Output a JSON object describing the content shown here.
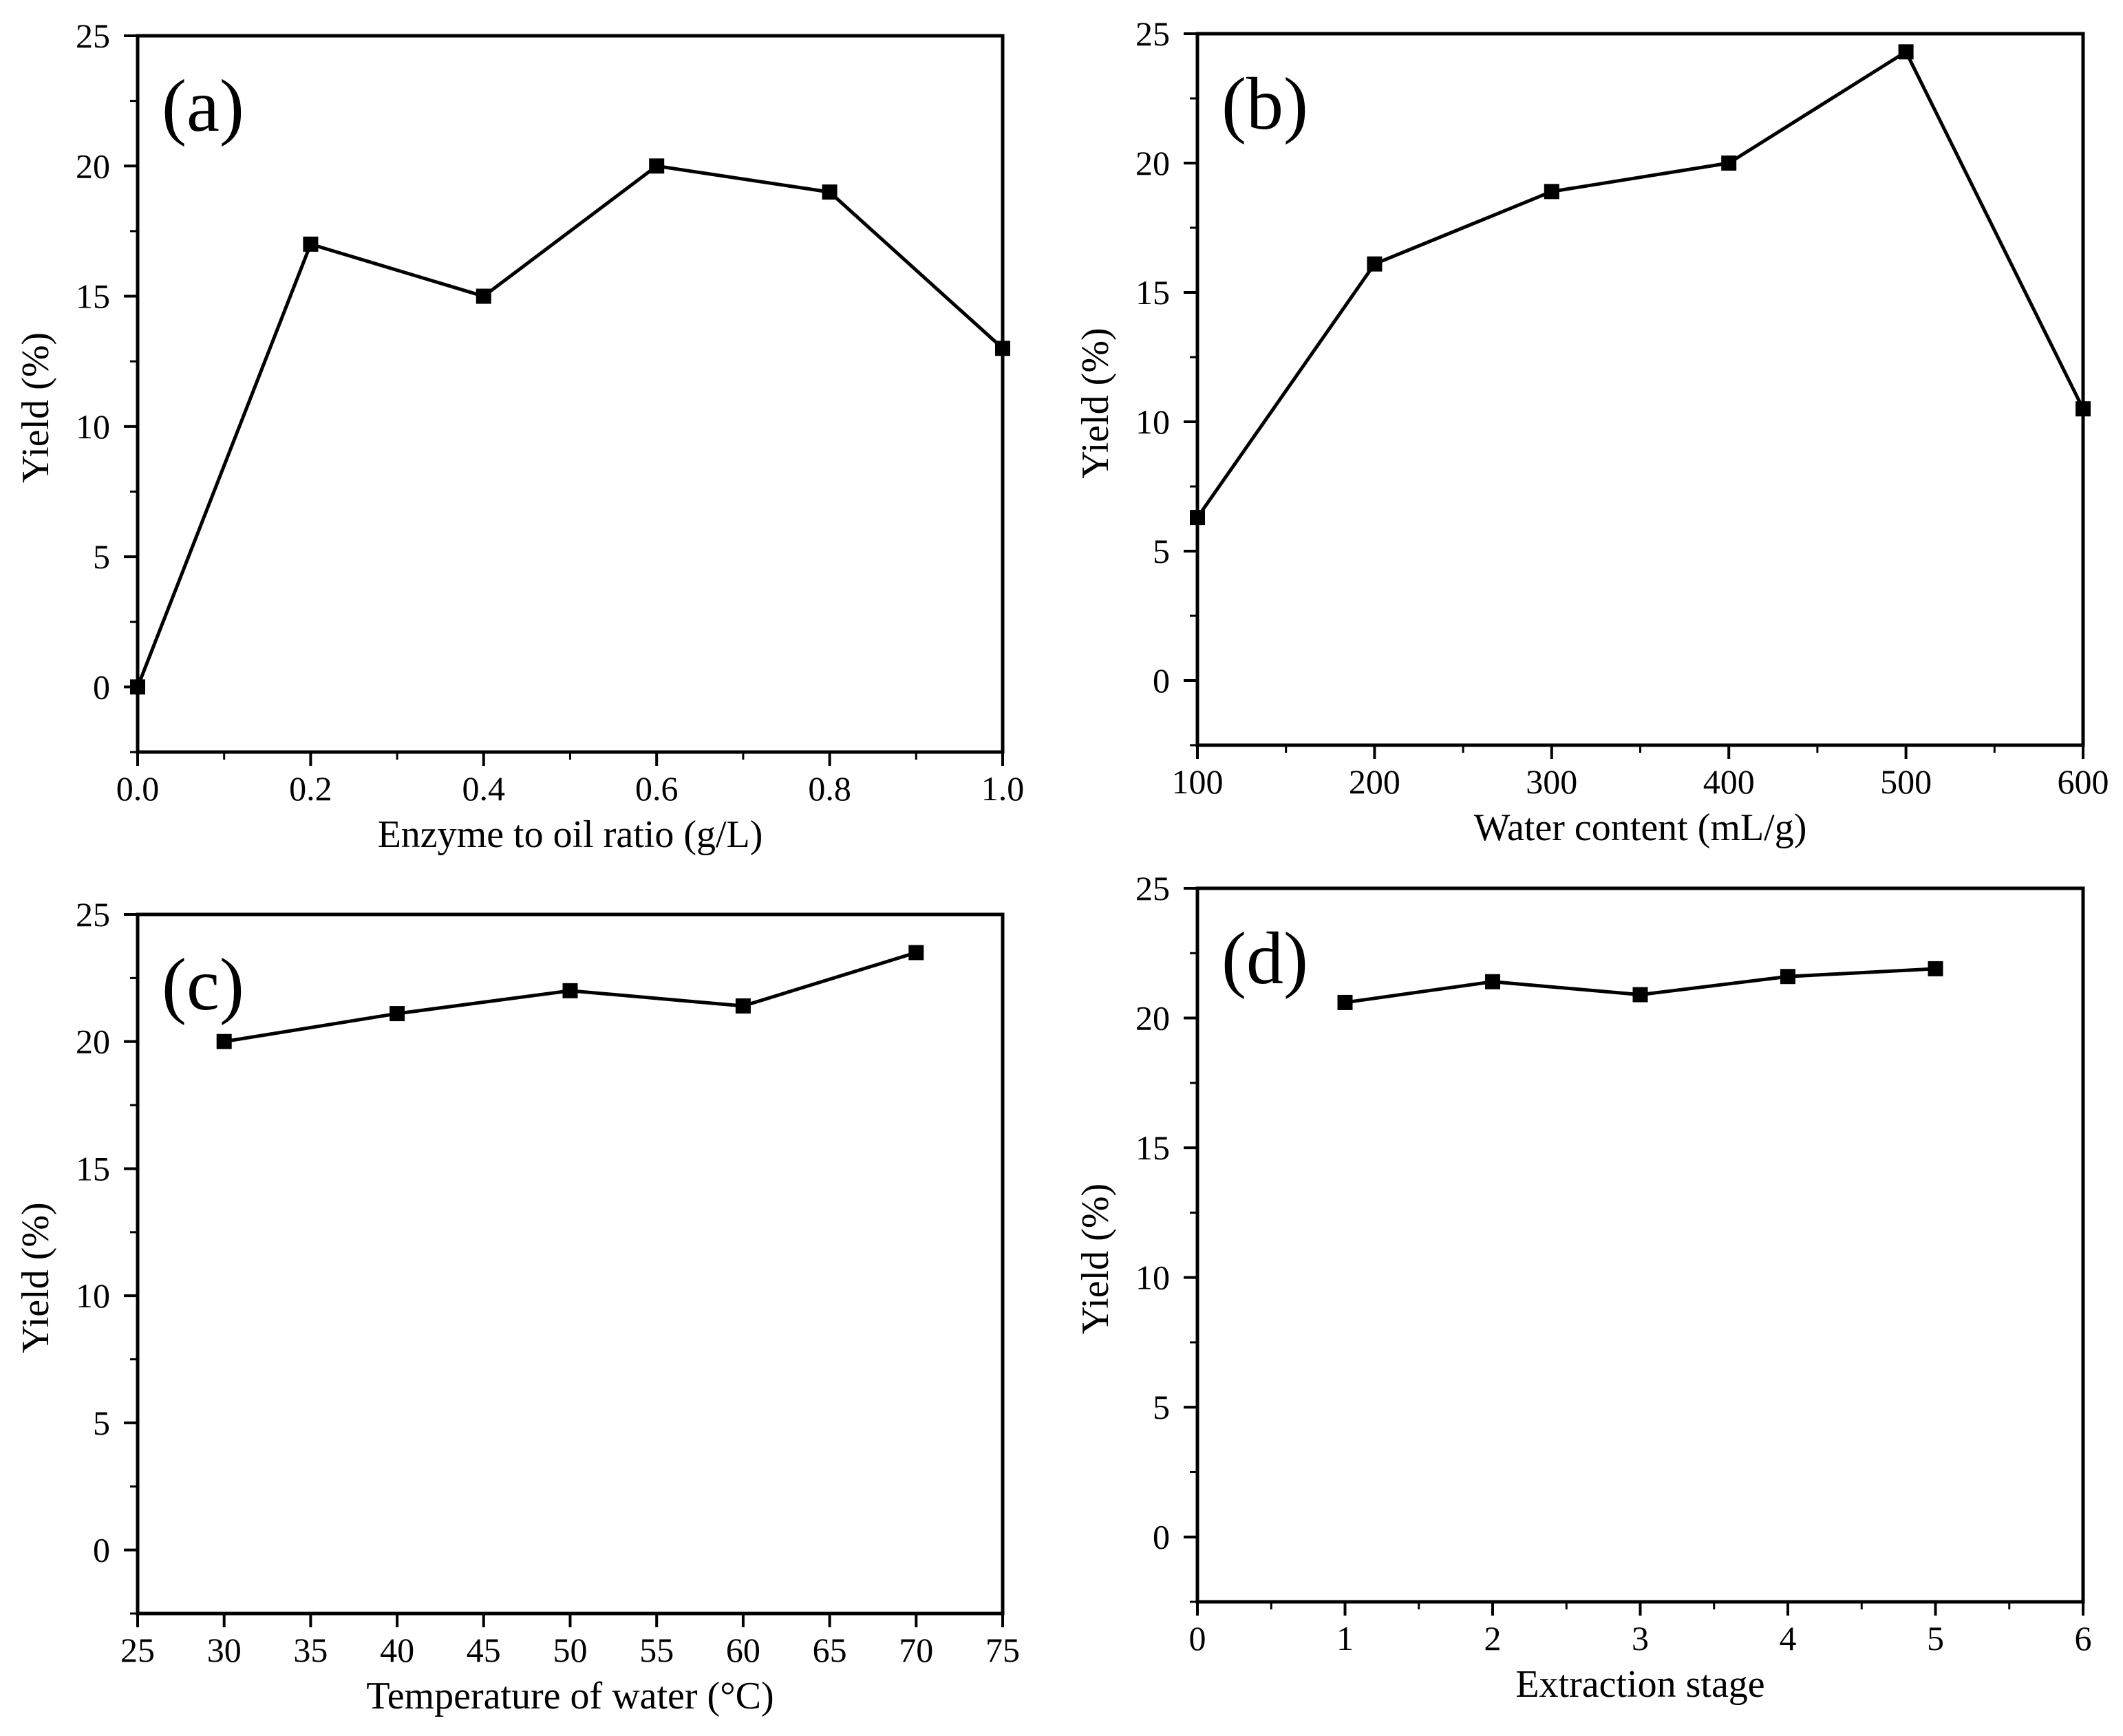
{
  "chart_data": [
    {
      "type": "line",
      "panel_label": "(a)",
      "xlabel": "Enzyme to oil ratio (g/L)",
      "ylabel": "Yield (%)",
      "xlim": [
        0.0,
        1.0
      ],
      "ylim": [
        -2.5,
        25
      ],
      "x_ticks": [
        "0.0",
        "0.2",
        "0.4",
        "0.6",
        "0.8",
        "1.0"
      ],
      "y_ticks": [
        "0",
        "5",
        "10",
        "15",
        "20",
        "25"
      ],
      "series": [
        {
          "name": "Yield",
          "x": [
            0.0,
            0.2,
            0.4,
            0.6,
            0.8,
            1.0
          ],
          "y": [
            0,
            17,
            15,
            20,
            19,
            13
          ]
        }
      ]
    },
    {
      "type": "line",
      "panel_label": "(b)",
      "xlabel": "Water content (mL/g)",
      "ylabel": "Yield (%)",
      "xlim": [
        100,
        600
      ],
      "ylim": [
        -2.5,
        25
      ],
      "x_ticks": [
        "100",
        "200",
        "300",
        "400",
        "500",
        "600"
      ],
      "y_ticks": [
        "0",
        "5",
        "10",
        "15",
        "20",
        "25"
      ],
      "series": [
        {
          "name": "Yield",
          "x": [
            100,
            200,
            300,
            400,
            500,
            600
          ],
          "y": [
            6.3,
            16.1,
            18.9,
            20.0,
            24.3,
            10.5
          ]
        }
      ]
    },
    {
      "type": "line",
      "panel_label": "(c)",
      "xlabel": "Temperature of water (°C)",
      "ylabel": "Yield (%)",
      "xlim": [
        25,
        75
      ],
      "ylim": [
        -2.5,
        25
      ],
      "x_ticks": [
        "25",
        "30",
        "35",
        "40",
        "45",
        "50",
        "55",
        "60",
        "65",
        "70",
        "75"
      ],
      "y_ticks": [
        "0",
        "5",
        "10",
        "15",
        "20",
        "25"
      ],
      "series": [
        {
          "name": "Yield",
          "x": [
            30,
            40,
            50,
            60,
            70
          ],
          "y": [
            20.0,
            21.1,
            22.0,
            21.4,
            23.5
          ]
        }
      ]
    },
    {
      "type": "line",
      "panel_label": "(d)",
      "xlabel": "Extraction stage",
      "ylabel": "Yield (%)",
      "xlim": [
        0,
        6
      ],
      "ylim": [
        -2.5,
        25
      ],
      "x_ticks": [
        "0",
        "1",
        "2",
        "3",
        "4",
        "5",
        "6"
      ],
      "y_ticks": [
        "0",
        "5",
        "10",
        "15",
        "20",
        "25"
      ],
      "series": [
        {
          "name": "Yield",
          "x": [
            1,
            2,
            3,
            4,
            5
          ],
          "y": [
            20.6,
            21.4,
            20.9,
            21.6,
            21.9
          ]
        }
      ]
    }
  ]
}
